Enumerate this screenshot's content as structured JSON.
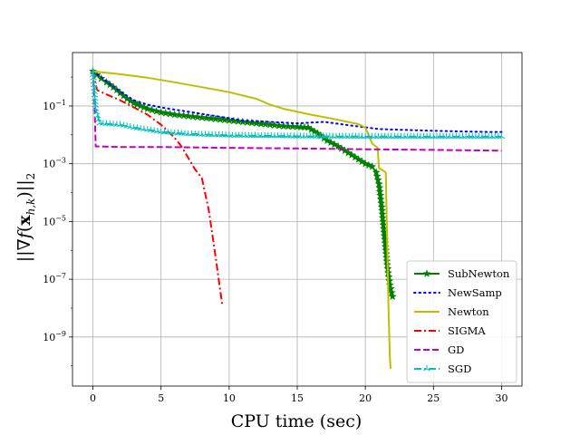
{
  "chart_data": {
    "type": "line",
    "title": "",
    "xlabel": "CPU time (sec)",
    "ylabel": "||∇f(x_{h,k})||₂",
    "ylabel_parts": {
      "pre": "||∇",
      "f": "f",
      "mid": "(",
      "x": "x",
      "sub": "h,k",
      "post": ")||",
      "sub2": "2"
    },
    "xlim": [
      -1.5,
      31.5
    ],
    "ylim_log10": [
      -10.7,
      0.85
    ],
    "yscale": "log",
    "grid": true,
    "legend_position": "lower right",
    "x_ticks": [
      0,
      5,
      10,
      15,
      20,
      25,
      30
    ],
    "x_tick_labels": [
      "0",
      "5",
      "10",
      "15",
      "20",
      "25",
      "30"
    ],
    "y_ticks_log10": [
      -1,
      -3,
      -5,
      -7,
      -9
    ],
    "y_tick_labels": [
      {
        "base": "10",
        "exp": "−1"
      },
      {
        "base": "10",
        "exp": "−3"
      },
      {
        "base": "10",
        "exp": "−5"
      },
      {
        "base": "10",
        "exp": "−7"
      },
      {
        "base": "10",
        "exp": "−9"
      }
    ],
    "series": [
      {
        "name": "SubNewton",
        "color": "#008000",
        "dash": "solid",
        "marker": "star",
        "points": [
          [
            0,
            0.2
          ],
          [
            0.3,
            0.08
          ],
          [
            0.6,
            -0.05
          ],
          [
            1,
            -0.18
          ],
          [
            1.5,
            -0.35
          ],
          [
            2,
            -0.55
          ],
          [
            2.5,
            -0.75
          ],
          [
            3,
            -0.9
          ],
          [
            4,
            -1.1
          ],
          [
            5,
            -1.22
          ],
          [
            6,
            -1.3
          ],
          [
            7,
            -1.35
          ],
          [
            8,
            -1.4
          ],
          [
            9,
            -1.45
          ],
          [
            10,
            -1.5
          ],
          [
            11,
            -1.55
          ],
          [
            12,
            -1.6
          ],
          [
            13,
            -1.65
          ],
          [
            14,
            -1.7
          ],
          [
            15,
            -1.72
          ],
          [
            15.8,
            -1.75
          ],
          [
            16.5,
            -1.95
          ],
          [
            17.2,
            -2.2
          ],
          [
            18,
            -2.4
          ],
          [
            18.5,
            -2.55
          ],
          [
            19,
            -2.7
          ],
          [
            19.5,
            -2.85
          ],
          [
            20,
            -3.0
          ],
          [
            20.5,
            -3.1
          ],
          [
            20.8,
            -3.3
          ],
          [
            21,
            -3.7
          ],
          [
            21.2,
            -4.5
          ],
          [
            21.4,
            -5.5
          ],
          [
            21.6,
            -6.5
          ],
          [
            21.8,
            -7.2
          ],
          [
            22,
            -7.6
          ]
        ]
      },
      {
        "name": "NewSamp",
        "color": "#0000ff",
        "dash": "dotted",
        "marker": "none",
        "points": [
          [
            0,
            0.15
          ],
          [
            0.5,
            0.05
          ],
          [
            1,
            -0.15
          ],
          [
            2,
            -0.5
          ],
          [
            3,
            -0.8
          ],
          [
            4,
            -0.95
          ],
          [
            5,
            -1.05
          ],
          [
            7,
            -1.2
          ],
          [
            9,
            -1.35
          ],
          [
            11,
            -1.5
          ],
          [
            13,
            -1.55
          ],
          [
            15,
            -1.6
          ],
          [
            17,
            -1.55
          ],
          [
            19,
            -1.68
          ],
          [
            21,
            -1.8
          ],
          [
            23,
            -1.83
          ],
          [
            25,
            -1.86
          ],
          [
            27,
            -1.88
          ],
          [
            29,
            -1.9
          ],
          [
            30,
            -1.9
          ]
        ]
      },
      {
        "name": "Newton",
        "color": "#bfbf00",
        "dash": "solid",
        "marker": "none",
        "points": [
          [
            0,
            0.2
          ],
          [
            2,
            0.1
          ],
          [
            4,
            -0.02
          ],
          [
            6,
            -0.18
          ],
          [
            8,
            -0.35
          ],
          [
            10,
            -0.52
          ],
          [
            12,
            -0.75
          ],
          [
            13,
            -0.95
          ],
          [
            14,
            -1.1
          ],
          [
            16,
            -1.3
          ],
          [
            18,
            -1.48
          ],
          [
            19.5,
            -1.63
          ],
          [
            20,
            -1.75
          ],
          [
            20.5,
            -2.3
          ],
          [
            20.9,
            -2.45
          ],
          [
            21,
            -3.15
          ],
          [
            21.5,
            -3.3
          ],
          [
            21.7,
            -8.0
          ],
          [
            21.8,
            -9.7
          ],
          [
            21.85,
            -10.1
          ]
        ]
      },
      {
        "name": "SIGMA",
        "color": "#ff0000",
        "dash": "dashdot",
        "marker": "none",
        "points": [
          [
            0,
            0.2
          ],
          [
            0.3,
            -0.45
          ],
          [
            1,
            -0.6
          ],
          [
            2,
            -0.8
          ],
          [
            3,
            -1.05
          ],
          [
            4,
            -1.3
          ],
          [
            5,
            -1.65
          ],
          [
            6,
            -2.1
          ],
          [
            6.5,
            -2.4
          ],
          [
            7,
            -2.8
          ],
          [
            7.5,
            -3.2
          ],
          [
            8,
            -3.5
          ],
          [
            8.5,
            -4.6
          ],
          [
            9,
            -6.2
          ],
          [
            9.5,
            -7.9
          ]
        ]
      },
      {
        "name": "GD",
        "color": "#bf00bf",
        "dash": "dashed",
        "marker": "none",
        "points": [
          [
            0,
            0.2
          ],
          [
            0.1,
            -0.6
          ],
          [
            0.2,
            -2.4
          ],
          [
            2,
            -2.42
          ],
          [
            5,
            -2.42
          ],
          [
            10,
            -2.45
          ],
          [
            15,
            -2.47
          ],
          [
            20,
            -2.5
          ],
          [
            25,
            -2.52
          ],
          [
            30,
            -2.55
          ]
        ]
      },
      {
        "name": "SGD",
        "color": "#00bfbf",
        "dash": "dashdot",
        "marker": "tri",
        "points": [
          [
            0,
            0.2
          ],
          [
            0.2,
            -1.1
          ],
          [
            0.5,
            -1.6
          ],
          [
            2,
            -1.65
          ],
          [
            3,
            -1.75
          ],
          [
            4,
            -1.82
          ],
          [
            5,
            -1.9
          ],
          [
            7,
            -1.97
          ],
          [
            10,
            -2.02
          ],
          [
            15,
            -2.05
          ],
          [
            20,
            -2.06
          ],
          [
            25,
            -2.06
          ],
          [
            30,
            -2.06
          ]
        ]
      }
    ]
  }
}
